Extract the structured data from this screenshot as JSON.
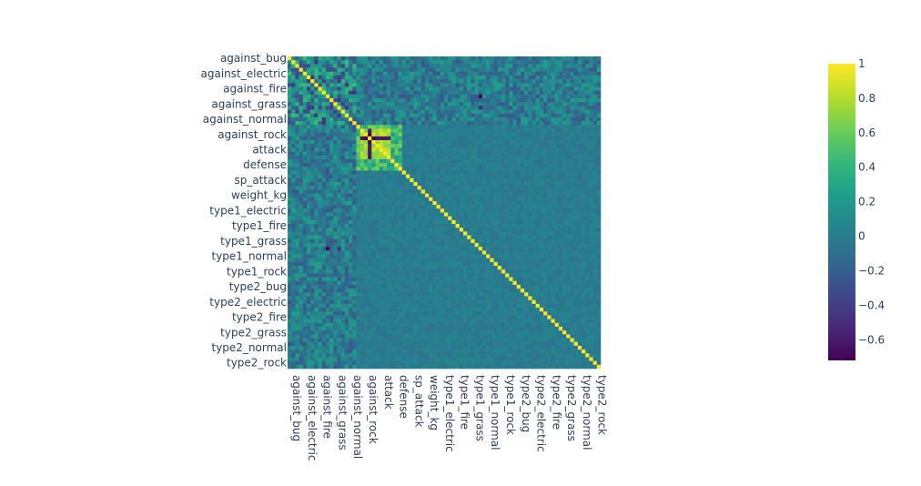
{
  "chart_data": {
    "type": "heatmap",
    "title": "",
    "colorscale": "viridis",
    "colorscale_stops": [
      "#440154",
      "#482878",
      "#3e4989",
      "#31688e",
      "#26828e",
      "#1f9e89",
      "#35b779",
      "#6ece58",
      "#b5de2b",
      "#fde725"
    ],
    "zmin": -0.72,
    "zmax": 1,
    "n_cells": 82,
    "x_tick_labels": [
      "against_bug",
      "against_electric",
      "against_fire",
      "against_grass",
      "against_normal",
      "against_rock",
      "attack",
      "defense",
      "sp_attack",
      "weight_kg",
      "type1_electric",
      "type1_fire",
      "type1_grass",
      "type1_normal",
      "type1_rock",
      "type2_bug",
      "type2_electric",
      "type2_fire",
      "type2_grass",
      "type2_normal",
      "type2_rock"
    ],
    "y_tick_labels": [
      "against_bug",
      "against_electric",
      "against_fire",
      "against_grass",
      "against_normal",
      "against_rock",
      "attack",
      "defense",
      "sp_attack",
      "weight_kg",
      "type1_electric",
      "type1_fire",
      "type1_grass",
      "type1_normal",
      "type1_rock",
      "type2_bug",
      "type2_electric",
      "type2_fire",
      "type2_grass",
      "type2_normal",
      "type2_rock"
    ],
    "colorbar_ticks": [
      {
        "value": 1,
        "label": "1"
      },
      {
        "value": 0.8,
        "label": "0.8"
      },
      {
        "value": 0.6,
        "label": "0.6"
      },
      {
        "value": 0.4,
        "label": "0.4"
      },
      {
        "value": 0.2,
        "label": "0.2"
      },
      {
        "value": 0,
        "label": "0"
      },
      {
        "value": -0.2,
        "label": "−0.2"
      },
      {
        "value": -0.4,
        "label": "−0.4"
      },
      {
        "value": -0.6,
        "label": "−0.6"
      }
    ]
  }
}
